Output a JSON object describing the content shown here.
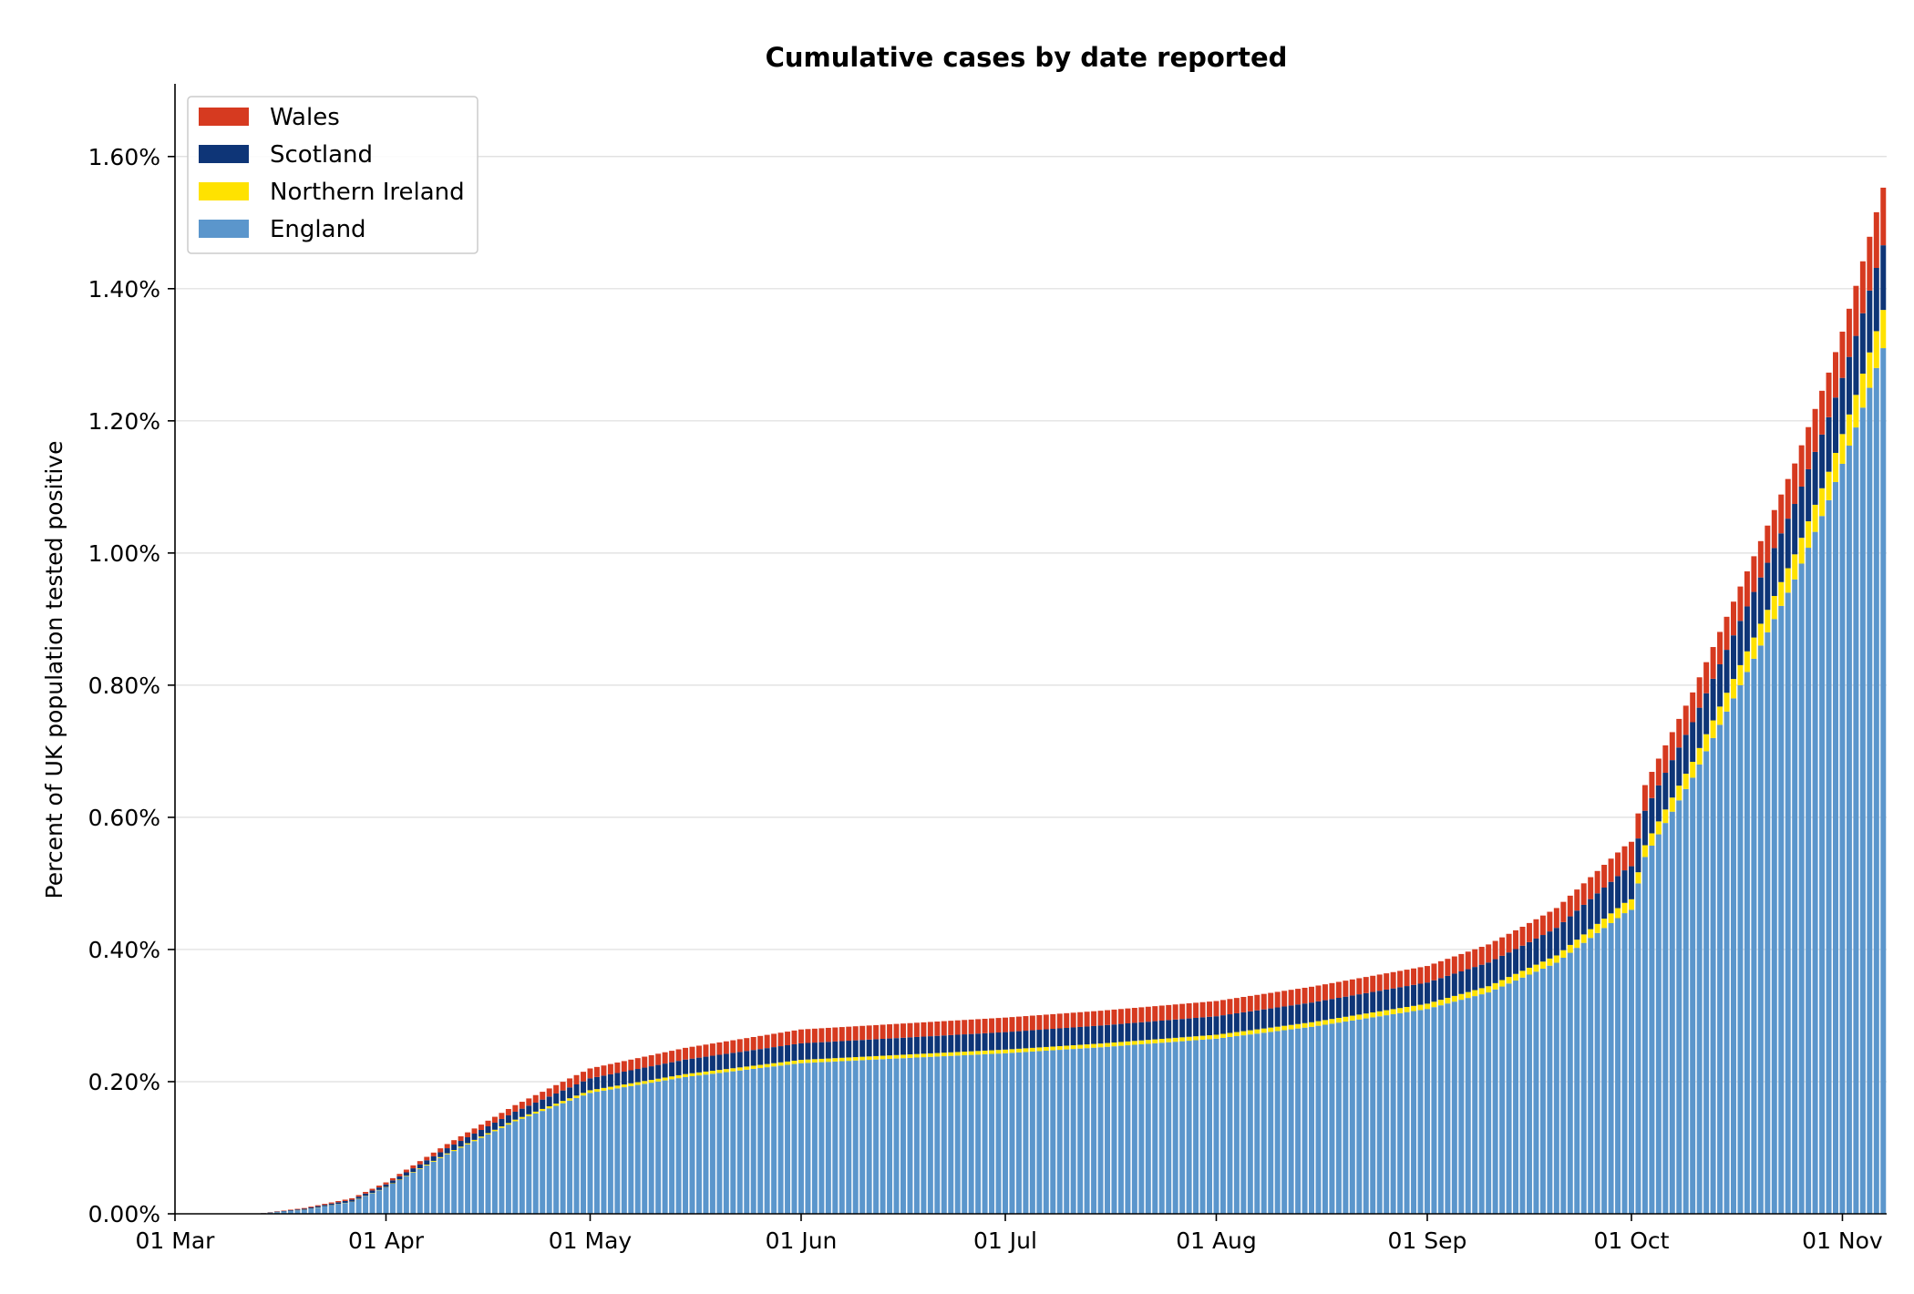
{
  "chart_data": {
    "type": "bar",
    "stacked": true,
    "title": "Cumulative cases by date reported",
    "xlabel": "",
    "ylabel": "Percent of UK population tested positive",
    "x_start": "2020-03-01",
    "x_end": "2020-11-08",
    "x_ticks": [
      {
        "date": "2020-03-01",
        "label": "01 Mar"
      },
      {
        "date": "2020-04-01",
        "label": "01 Apr"
      },
      {
        "date": "2020-05-01",
        "label": "01 May"
      },
      {
        "date": "2020-06-01",
        "label": "01 Jun"
      },
      {
        "date": "2020-07-01",
        "label": "01 Jul"
      },
      {
        "date": "2020-08-01",
        "label": "01 Aug"
      },
      {
        "date": "2020-09-01",
        "label": "01 Sep"
      },
      {
        "date": "2020-10-01",
        "label": "01 Oct"
      },
      {
        "date": "2020-11-01",
        "label": "01 Nov"
      }
    ],
    "ylim": [
      0,
      1.71
    ],
    "y_ticks": [
      {
        "value": 0.0,
        "label": "0.00%"
      },
      {
        "value": 0.2,
        "label": "0.20%"
      },
      {
        "value": 0.4,
        "label": "0.40%"
      },
      {
        "value": 0.6,
        "label": "0.60%"
      },
      {
        "value": 0.8,
        "label": "0.80%"
      },
      {
        "value": 1.0,
        "label": "1.00%"
      },
      {
        "value": 1.2,
        "label": "1.20%"
      },
      {
        "value": 1.4,
        "label": "1.40%"
      },
      {
        "value": 1.6,
        "label": "1.60%"
      }
    ],
    "grid": "y",
    "legend_position": "top-left",
    "legend_order": [
      "Wales",
      "Scotland",
      "Northern Ireland",
      "England"
    ],
    "series": [
      {
        "name": "England",
        "color": "#5b96cc",
        "anchors": [
          [
            "2020-03-13",
            0.0
          ],
          [
            "2020-03-20",
            0.006
          ],
          [
            "2020-03-27",
            0.018
          ],
          [
            "2020-04-01",
            0.04
          ],
          [
            "2020-04-10",
            0.09
          ],
          [
            "2020-04-20",
            0.14
          ],
          [
            "2020-05-01",
            0.183
          ],
          [
            "2020-05-15",
            0.207
          ],
          [
            "2020-06-01",
            0.228
          ],
          [
            "2020-06-15",
            0.235
          ],
          [
            "2020-07-01",
            0.243
          ],
          [
            "2020-07-15",
            0.252
          ],
          [
            "2020-08-01",
            0.265
          ],
          [
            "2020-08-15",
            0.283
          ],
          [
            "2020-09-01",
            0.31
          ],
          [
            "2020-09-10",
            0.335
          ],
          [
            "2020-09-20",
            0.38
          ],
          [
            "2020-09-30",
            0.455
          ],
          [
            "2020-10-01",
            0.46
          ],
          [
            "2020-10-03",
            0.54
          ],
          [
            "2020-10-10",
            0.66
          ],
          [
            "2020-10-15",
            0.76
          ],
          [
            "2020-10-20",
            0.86
          ],
          [
            "2020-10-25",
            0.96
          ],
          [
            "2020-10-30",
            1.08
          ],
          [
            "2020-11-03",
            1.19
          ],
          [
            "2020-11-07",
            1.31
          ],
          [
            "2020-11-08",
            1.37
          ]
        ]
      },
      {
        "name": "Northern Ireland",
        "color": "#ffe200",
        "anchors": [
          [
            "2020-03-13",
            0.0
          ],
          [
            "2020-04-01",
            0.0005
          ],
          [
            "2020-04-20",
            0.0025
          ],
          [
            "2020-05-01",
            0.004
          ],
          [
            "2020-06-01",
            0.005
          ],
          [
            "2020-08-01",
            0.006
          ],
          [
            "2020-09-01",
            0.008
          ],
          [
            "2020-09-20",
            0.011
          ],
          [
            "2020-10-01",
            0.016
          ],
          [
            "2020-10-10",
            0.024
          ],
          [
            "2020-10-20",
            0.033
          ],
          [
            "2020-11-01",
            0.045
          ],
          [
            "2020-11-08",
            0.06
          ]
        ]
      },
      {
        "name": "Scotland",
        "color": "#0e3577",
        "anchors": [
          [
            "2020-03-13",
            0.0
          ],
          [
            "2020-04-01",
            0.004
          ],
          [
            "2020-04-20",
            0.012
          ],
          [
            "2020-05-01",
            0.018
          ],
          [
            "2020-05-15",
            0.022
          ],
          [
            "2020-06-01",
            0.025
          ],
          [
            "2020-08-01",
            0.028
          ],
          [
            "2020-09-01",
            0.032
          ],
          [
            "2020-09-15",
            0.038
          ],
          [
            "2020-10-01",
            0.05
          ],
          [
            "2020-10-10",
            0.06
          ],
          [
            "2020-10-20",
            0.07
          ],
          [
            "2020-11-01",
            0.085
          ],
          [
            "2020-11-08",
            0.1
          ]
        ]
      },
      {
        "name": "Wales",
        "color": "#d63a20",
        "anchors": [
          [
            "2020-03-13",
            0.0
          ],
          [
            "2020-04-01",
            0.003
          ],
          [
            "2020-04-20",
            0.01
          ],
          [
            "2020-05-01",
            0.015
          ],
          [
            "2020-06-01",
            0.021
          ],
          [
            "2020-08-01",
            0.023
          ],
          [
            "2020-09-01",
            0.025
          ],
          [
            "2020-09-20",
            0.03
          ],
          [
            "2020-10-01",
            0.037
          ],
          [
            "2020-10-10",
            0.045
          ],
          [
            "2020-10-20",
            0.055
          ],
          [
            "2020-11-01",
            0.07
          ],
          [
            "2020-11-08",
            0.09
          ]
        ]
      }
    ]
  }
}
